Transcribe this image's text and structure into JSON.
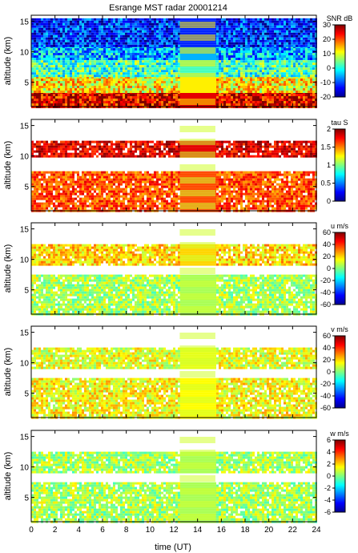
{
  "chart_data": [
    {
      "type": "heatmap",
      "title": "Esrange MST radar 20001214",
      "ylabel": "altitude (km)",
      "xlabel": "",
      "x_range": [
        0,
        24
      ],
      "ylim": [
        1,
        16
      ],
      "y_ticks": [
        "5",
        "10",
        "15"
      ],
      "colorbar": {
        "label": "SNR dB",
        "range": [
          -20,
          30
        ],
        "ticks": [
          "-20",
          "-10",
          "0",
          "10",
          "20",
          "30"
        ]
      },
      "layers": [
        {
          "altitude_km": [
            1,
            3.5
          ],
          "value": 25
        },
        {
          "altitude_km": [
            3.5,
            6
          ],
          "value": 12
        },
        {
          "altitude_km": [
            6,
            9
          ],
          "value": 2
        },
        {
          "altitude_km": [
            9,
            11
          ],
          "value": -5
        },
        {
          "altitude_km": [
            11,
            15.5
          ],
          "value": -12
        }
      ],
      "data_gap_hours": [
        12.5,
        15.5
      ]
    },
    {
      "type": "heatmap",
      "title": "",
      "ylabel": "altitude (km)",
      "xlabel": "",
      "x_range": [
        0,
        24
      ],
      "ylim": [
        1,
        16
      ],
      "y_ticks": [
        "5",
        "10",
        "15"
      ],
      "colorbar": {
        "label": "tau S",
        "range": [
          0,
          2
        ],
        "ticks": [
          "0",
          "0.5",
          "1",
          "1.5",
          "2"
        ]
      },
      "layers": [
        {
          "altitude_km": [
            1,
            7.5
          ],
          "value": 1.6
        },
        {
          "altitude_km": [
            10,
            12.5
          ],
          "value": 1.8
        }
      ],
      "data_gap_hours": [
        12.5,
        15.5
      ]
    },
    {
      "type": "heatmap",
      "title": "",
      "ylabel": "altitude (km)",
      "xlabel": "",
      "x_range": [
        0,
        24
      ],
      "ylim": [
        1,
        16
      ],
      "y_ticks": [
        "5",
        "10",
        "15"
      ],
      "colorbar": {
        "label": "u m/s",
        "range": [
          -60,
          60
        ],
        "ticks": [
          "-60",
          "-40",
          "-20",
          "0",
          "20",
          "40",
          "60"
        ]
      },
      "layers": [
        {
          "altitude_km": [
            1,
            7.5
          ],
          "value": 5
        },
        {
          "altitude_km": [
            9,
            12.5
          ],
          "value": 20
        }
      ],
      "data_gap_hours": [
        12.5,
        15.5
      ]
    },
    {
      "type": "heatmap",
      "title": "",
      "ylabel": "altitude (km)",
      "xlabel": "",
      "x_range": [
        0,
        24
      ],
      "ylim": [
        1,
        16
      ],
      "y_ticks": [
        "5",
        "10",
        "15"
      ],
      "colorbar": {
        "label": "v m/s",
        "range": [
          -60,
          60
        ],
        "ticks": [
          "-60",
          "-40",
          "-20",
          "0",
          "20",
          "40",
          "60"
        ]
      },
      "layers": [
        {
          "altitude_km": [
            1,
            7.5
          ],
          "value": 15
        },
        {
          "altitude_km": [
            9,
            12.5
          ],
          "value": 12
        }
      ],
      "data_gap_hours": [
        12.5,
        15.5
      ]
    },
    {
      "type": "heatmap",
      "title": "",
      "ylabel": "altitude (km)",
      "xlabel": "time (UT)",
      "x_range": [
        0,
        24
      ],
      "x_ticks": [
        "0",
        "2",
        "4",
        "6",
        "8",
        "10",
        "12",
        "14",
        "16",
        "18",
        "20",
        "22",
        "24"
      ],
      "ylim": [
        1,
        16
      ],
      "y_ticks": [
        "5",
        "10",
        "15"
      ],
      "colorbar": {
        "label": "w m/s",
        "range": [
          -6,
          6
        ],
        "ticks": [
          "-6",
          "-4",
          "-2",
          "0",
          "2",
          "4",
          "6"
        ]
      },
      "layers": [
        {
          "altitude_km": [
            1,
            7.5
          ],
          "value": 0.5
        },
        {
          "altitude_km": [
            9,
            12.5
          ],
          "value": 0.5
        }
      ],
      "data_gap_hours": [
        12.5,
        15.5
      ]
    }
  ]
}
